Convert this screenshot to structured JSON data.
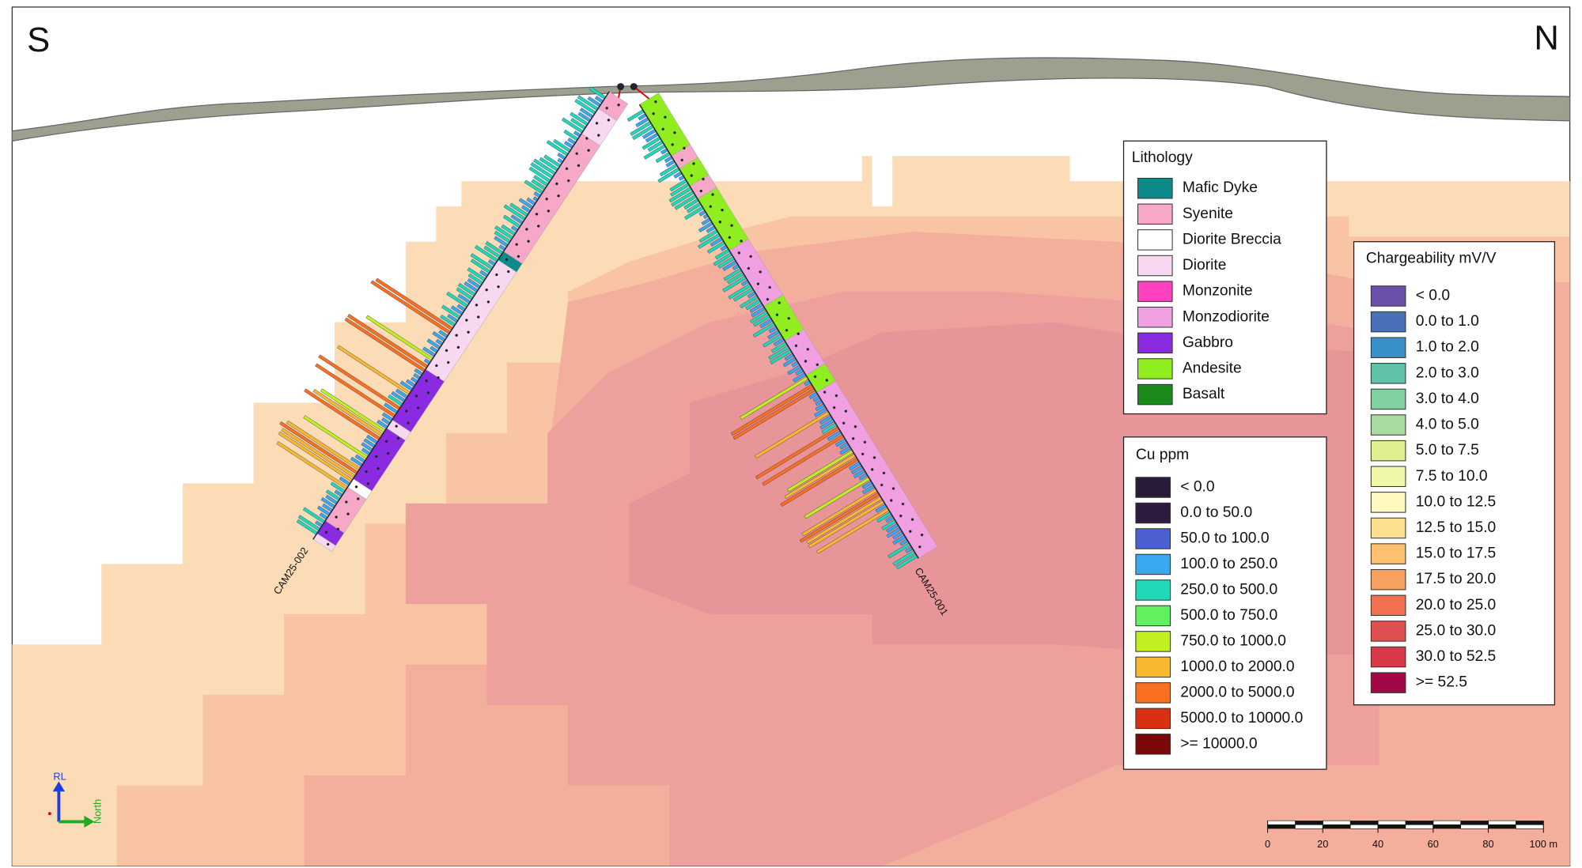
{
  "view": {
    "left_label": "S",
    "right_label": "N"
  },
  "holes": [
    {
      "name": "CAM25-002"
    },
    {
      "name": "CAM25-001"
    }
  ],
  "lithology": {
    "title": "Lithology",
    "items": [
      {
        "label": "Mafic Dyke",
        "color": "#0e8a8a"
      },
      {
        "label": "Syenite",
        "color": "#f7a8c8"
      },
      {
        "label": "Diorite Breccia",
        "color": "#ffffff"
      },
      {
        "label": "Diorite",
        "color": "#f8d8f0"
      },
      {
        "label": "Monzonite",
        "color": "#ff40c0"
      },
      {
        "label": "Monzodiorite",
        "color": "#f0a0e0"
      },
      {
        "label": "Gabbro",
        "color": "#8a2be2"
      },
      {
        "label": "Andesite",
        "color": "#90ee20"
      },
      {
        "label": "Basalt",
        "color": "#1a8a1a"
      }
    ]
  },
  "cu": {
    "title": "Cu ppm",
    "items": [
      {
        "label": "< 0.0",
        "color": "#2a1a3a"
      },
      {
        "label": "0.0 to 50.0",
        "color": "#2f1a40"
      },
      {
        "label": "50.0 to 100.0",
        "color": "#4a60d0"
      },
      {
        "label": "100.0 to 250.0",
        "color": "#3aa8f0"
      },
      {
        "label": "250.0 to 500.0",
        "color": "#20d8b8"
      },
      {
        "label": "500.0 to 750.0",
        "color": "#60f060"
      },
      {
        "label": "750.0 to 1000.0",
        "color": "#c0f020"
      },
      {
        "label": "1000.0 to 2000.0",
        "color": "#f8b830"
      },
      {
        "label": "2000.0 to 5000.0",
        "color": "#f87020"
      },
      {
        "label": "5000.0 to 10000.0",
        "color": "#d83010"
      },
      {
        "label": ">= 10000.0",
        "color": "#7a0808"
      }
    ]
  },
  "chargeability": {
    "title": "Chargeability mV/V",
    "items": [
      {
        "label": "< 0.0",
        "color": "#6a50a8"
      },
      {
        "label": "0.0 to 1.0",
        "color": "#4a70b8"
      },
      {
        "label": "1.0 to 2.0",
        "color": "#3a90c8"
      },
      {
        "label": "2.0 to 3.0",
        "color": "#60c0a8"
      },
      {
        "label": "3.0 to 4.0",
        "color": "#80d0a0"
      },
      {
        "label": "4.0 to 5.0",
        "color": "#a8dca0"
      },
      {
        "label": "5.0 to 7.5",
        "color": "#e0f090"
      },
      {
        "label": "7.5 to 10.0",
        "color": "#f0f8a8"
      },
      {
        "label": "10.0 to 12.5",
        "color": "#fff8c0"
      },
      {
        "label": "12.5 to 15.0",
        "color": "#fce090"
      },
      {
        "label": "15.0 to 17.5",
        "color": "#fcc070"
      },
      {
        "label": "17.5 to 20.0",
        "color": "#f8a060"
      },
      {
        "label": "20.0 to 25.0",
        "color": "#f07050"
      },
      {
        "label": "25.0 to 30.0",
        "color": "#e05050"
      },
      {
        "label": "30.0 to 52.5",
        "color": "#d83848"
      },
      {
        "label": ">= 52.5",
        "color": "#a00848"
      }
    ]
  },
  "axes": {
    "up": "RL",
    "right": "North"
  },
  "scale_bar": {
    "labels": [
      "0",
      "20",
      "40",
      "60",
      "80",
      "100 m"
    ]
  }
}
